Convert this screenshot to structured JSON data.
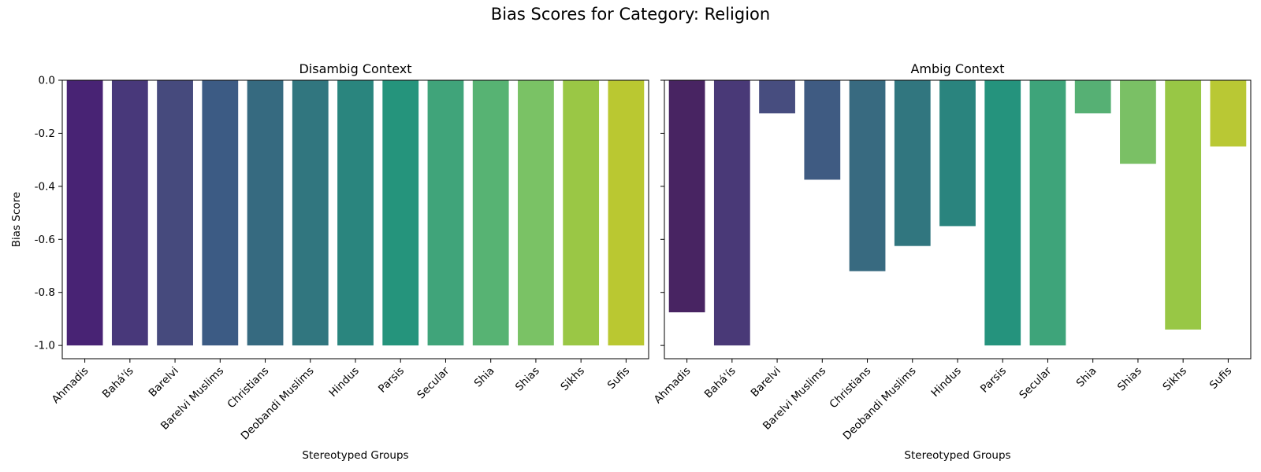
{
  "figure": {
    "title": "Bias Scores for Category: Religion"
  },
  "chart_data": [
    {
      "type": "bar",
      "title": "Disambig Context",
      "xlabel": "Stereotyped Groups",
      "ylabel": "Bias Score",
      "ylim": [
        -1.05,
        0.0
      ],
      "yticks": [
        "0.0",
        "-0.2",
        "-0.4",
        "-0.6",
        "-0.8",
        "-1.0"
      ],
      "categories": [
        "Ahmadis",
        "Bahá'ís",
        "Barelvi",
        "Barelvi Muslims",
        "Christians",
        "Deobandi Muslims",
        "Hindus",
        "Parsis",
        "Secular",
        "Shia",
        "Shias",
        "Sikhs",
        "Sufis"
      ],
      "values": [
        -1.0,
        -1.0,
        -1.0,
        -1.0,
        -1.0,
        -1.0,
        -1.0,
        -1.0,
        -1.0,
        -1.0,
        -1.0,
        -1.0,
        -1.0
      ],
      "colors": [
        "#482374",
        "#48387a",
        "#464a7d",
        "#3c5b84",
        "#366a80",
        "#31767f",
        "#2a857e",
        "#25947c",
        "#40a47a",
        "#57b373",
        "#7ac265",
        "#9ac745",
        "#bac831"
      ],
      "grid": false,
      "legend": "none"
    },
    {
      "type": "bar",
      "title": "Ambig Context",
      "xlabel": "Stereotyped Groups",
      "ylabel": "",
      "ylim": [
        -1.05,
        0.0
      ],
      "categories": [
        "Ahmadis",
        "Bahá'ís",
        "Barelvi",
        "Barelvi Muslims",
        "Christians",
        "Deobandi Muslims",
        "Hindus",
        "Parsis",
        "Secular",
        "Shia",
        "Shias",
        "Sikhs",
        "Sufis"
      ],
      "values": [
        -0.875,
        -1.0,
        -0.125,
        -0.375,
        -0.72,
        -0.625,
        -0.55,
        -1.0,
        -1.0,
        -0.125,
        -0.315,
        -0.94,
        -0.25
      ],
      "colors": [
        "#482462",
        "#493977",
        "#474d7f",
        "#3f5b82",
        "#386a80",
        "#31767f",
        "#2a847e",
        "#25937d",
        "#3ea47a",
        "#56b074",
        "#7ac065",
        "#98c745",
        "#b9c834"
      ],
      "grid": false,
      "legend": "none"
    }
  ]
}
